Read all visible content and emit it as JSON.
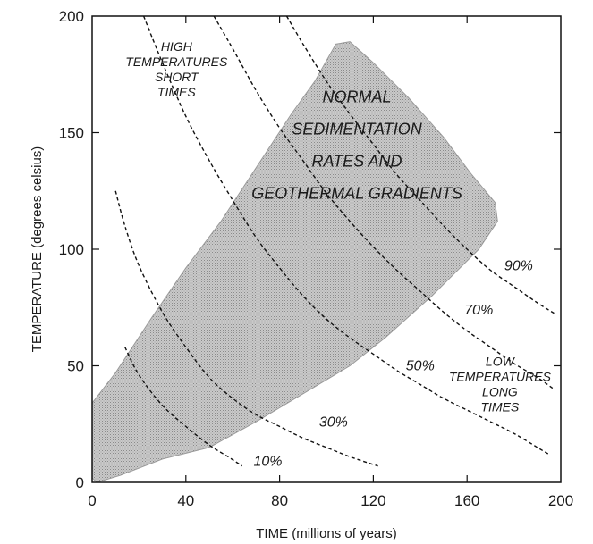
{
  "chart_data": {
    "type": "line",
    "title": "",
    "xlabel": "TIME (millions of years)",
    "ylabel": "TEMPERATURE (degrees celsius)",
    "xlim": [
      0,
      200
    ],
    "ylim": [
      0,
      200
    ],
    "x_ticks": [
      "0",
      "40",
      "80",
      "120",
      "160",
      "200"
    ],
    "y_ticks": [
      "0",
      "50",
      "100",
      "150",
      "200"
    ],
    "grid": false,
    "series": [
      {
        "name": "10%",
        "points": [
          [
            14,
            58
          ],
          [
            20,
            46
          ],
          [
            30,
            33
          ],
          [
            40,
            24
          ],
          [
            50,
            16
          ],
          [
            58,
            11
          ],
          [
            64,
            7
          ]
        ]
      },
      {
        "name": "30%",
        "points": [
          [
            10,
            125
          ],
          [
            14,
            110
          ],
          [
            20,
            93
          ],
          [
            30,
            73
          ],
          [
            40,
            58
          ],
          [
            50,
            45
          ],
          [
            60,
            36
          ],
          [
            70,
            29
          ],
          [
            80,
            24
          ],
          [
            90,
            19
          ],
          [
            100,
            15
          ],
          [
            110,
            11
          ],
          [
            122,
            7
          ]
        ]
      },
      {
        "name": "50%",
        "points": [
          [
            22,
            200
          ],
          [
            30,
            180
          ],
          [
            40,
            157
          ],
          [
            50,
            138
          ],
          [
            60,
            121
          ],
          [
            70,
            105
          ],
          [
            80,
            92
          ],
          [
            90,
            80
          ],
          [
            100,
            70
          ],
          [
            110,
            62
          ],
          [
            120,
            55
          ],
          [
            130,
            48
          ],
          [
            140,
            42
          ],
          [
            150,
            36
          ],
          [
            160,
            31
          ],
          [
            170,
            26
          ],
          [
            180,
            21
          ],
          [
            190,
            15
          ],
          [
            195,
            12
          ]
        ]
      },
      {
        "name": "70%",
        "points": [
          [
            52,
            200
          ],
          [
            60,
            186
          ],
          [
            70,
            168
          ],
          [
            80,
            152
          ],
          [
            90,
            138
          ],
          [
            100,
            124
          ],
          [
            110,
            112
          ],
          [
            120,
            101
          ],
          [
            130,
            91
          ],
          [
            140,
            82
          ],
          [
            150,
            73
          ],
          [
            160,
            65
          ],
          [
            170,
            58
          ],
          [
            180,
            51
          ],
          [
            190,
            45
          ],
          [
            197,
            40
          ]
        ]
      },
      {
        "name": "90%",
        "points": [
          [
            83,
            200
          ],
          [
            90,
            188
          ],
          [
            100,
            172
          ],
          [
            110,
            158
          ],
          [
            120,
            145
          ],
          [
            130,
            132
          ],
          [
            140,
            121
          ],
          [
            150,
            110
          ],
          [
            160,
            100
          ],
          [
            170,
            91
          ],
          [
            180,
            84
          ],
          [
            190,
            77
          ],
          [
            198,
            72
          ]
        ]
      }
    ],
    "shaded_region": {
      "name": "normal sedimentation rates and geothermal gradients",
      "polygon": [
        [
          2,
          0
        ],
        [
          12,
          3
        ],
        [
          30,
          10
        ],
        [
          50,
          15
        ],
        [
          70,
          26
        ],
        [
          90,
          38
        ],
        [
          110,
          50
        ],
        [
          125,
          62
        ],
        [
          145,
          80
        ],
        [
          165,
          100
        ],
        [
          173,
          112
        ],
        [
          172,
          120
        ],
        [
          162,
          132
        ],
        [
          150,
          148
        ],
        [
          135,
          165
        ],
        [
          120,
          180
        ],
        [
          110,
          189
        ],
        [
          104,
          188
        ],
        [
          95,
          172
        ],
        [
          85,
          158
        ],
        [
          70,
          135
        ],
        [
          55,
          112
        ],
        [
          40,
          92
        ],
        [
          25,
          70
        ],
        [
          10,
          47
        ],
        [
          0,
          34
        ],
        [
          0,
          2
        ]
      ],
      "color": "#c9c9c9"
    },
    "annotations": [
      {
        "lines": [
          "HIGH",
          "TEMPERATURES",
          "SHORT",
          "TIMES"
        ],
        "x": 36,
        "y": 185,
        "style": "small"
      },
      {
        "lines": [
          "NORMAL",
          "SEDIMENTATION",
          "RATES AND",
          "GEOTHERMAL GRADIENTS"
        ],
        "x": 113,
        "y": 163,
        "style": "big",
        "line_gap": 21
      },
      {
        "lines": [
          "LOW",
          "TEMPERATURES",
          "LONG",
          "TIMES"
        ],
        "x": 174,
        "y": 50,
        "style": "small"
      }
    ],
    "curve_labels": [
      {
        "text": "10%",
        "x": 75,
        "y": 7
      },
      {
        "text": "30%",
        "x": 103,
        "y": 24
      },
      {
        "text": "50%",
        "x": 140,
        "y": 48
      },
      {
        "text": "70%",
        "x": 165,
        "y": 72
      },
      {
        "text": "90%",
        "x": 182,
        "y": 91
      }
    ]
  }
}
